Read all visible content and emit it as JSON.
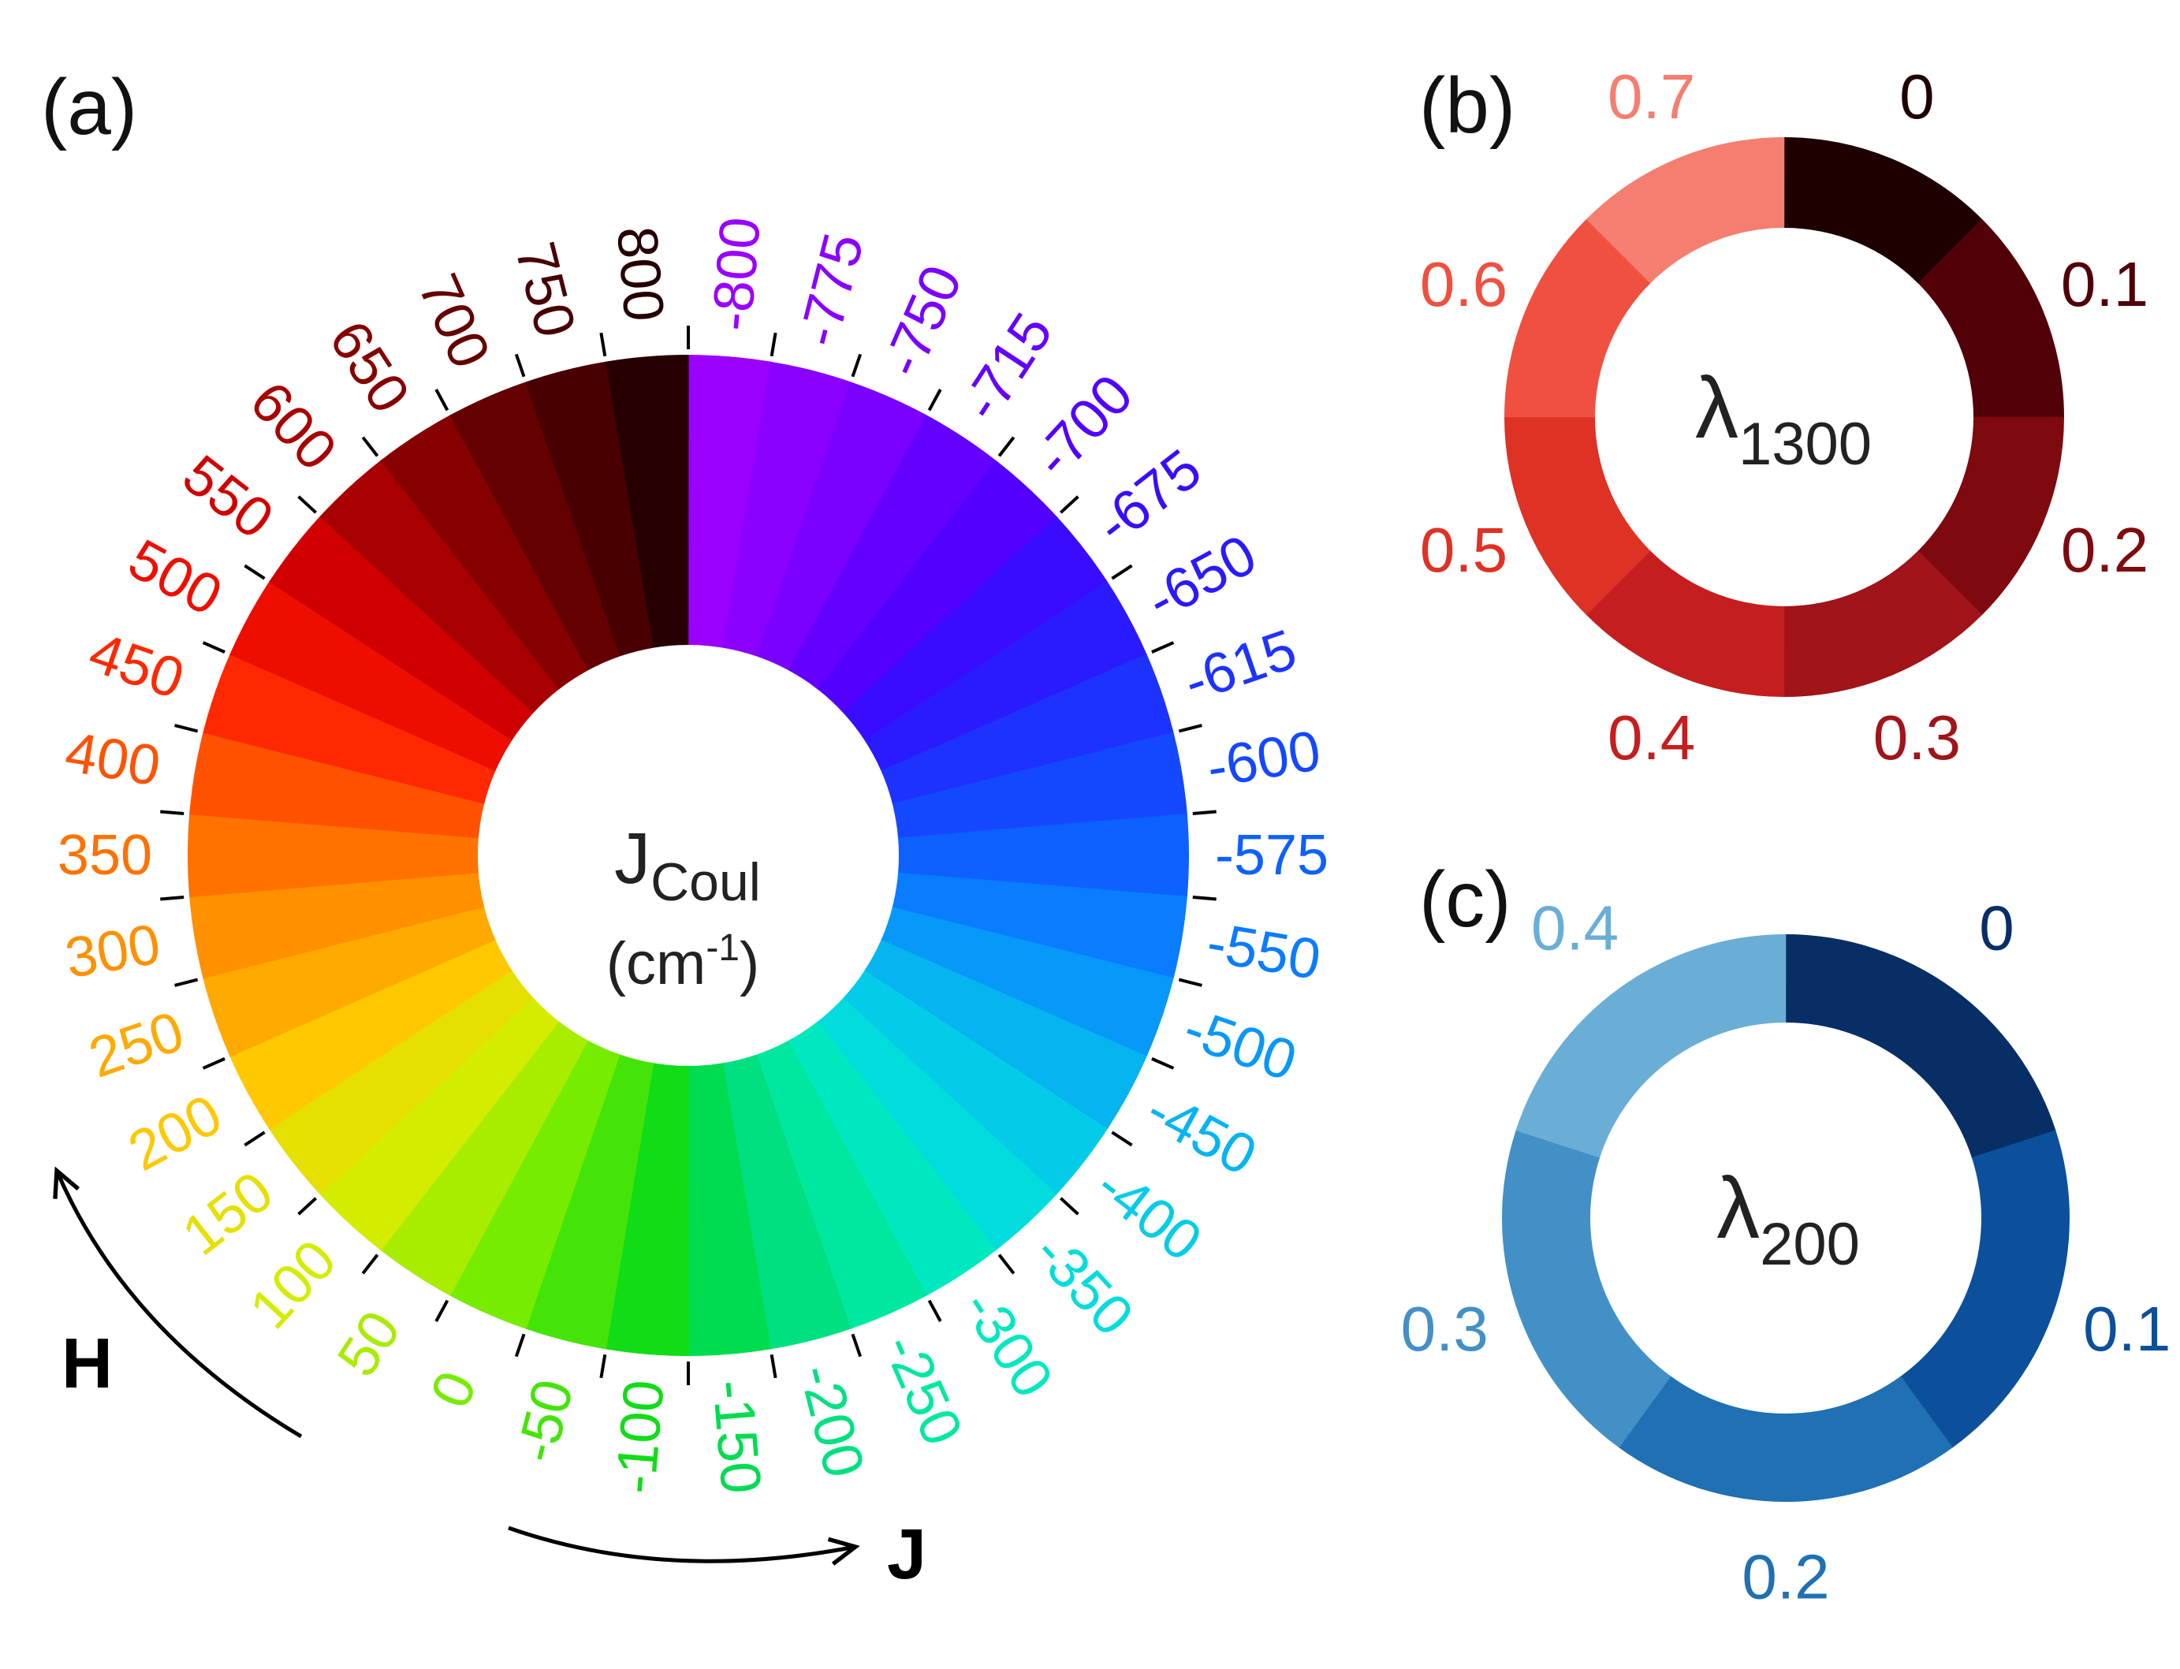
{
  "panel_a": {
    "label": "(a)",
    "center_title": "J",
    "center_title_sub": "Coul",
    "center_unit": "(cm",
    "center_unit_sup": "-1",
    "center_unit_close": ")",
    "arrow_h_label": "H",
    "arrow_j_label": "J",
    "segments": [
      {
        "value": "-800",
        "color": "#9A00FF",
        "label_color": "#9A00FF"
      },
      {
        "value": "-775",
        "color": "#8A00FF",
        "label_color": "#8A00FF"
      },
      {
        "value": "-750",
        "color": "#7A00FF",
        "label_color": "#7A00FF"
      },
      {
        "value": "-715",
        "color": "#6400FF",
        "label_color": "#6400FF"
      },
      {
        "value": "-700",
        "color": "#5200FF",
        "label_color": "#5200FF"
      },
      {
        "value": "-675",
        "color": "#3A0CFF",
        "label_color": "#3A0CFF"
      },
      {
        "value": "-650",
        "color": "#2A1AFF",
        "label_color": "#2A1AFF"
      },
      {
        "value": "-615",
        "color": "#1E32FF",
        "label_color": "#1E32FF"
      },
      {
        "value": "-600",
        "color": "#1448FF",
        "label_color": "#1448FF"
      },
      {
        "value": "-575",
        "color": "#0E60FF",
        "label_color": "#0E60FF"
      },
      {
        "value": "-550",
        "color": "#0A7CFF",
        "label_color": "#0A7CFF"
      },
      {
        "value": "-500",
        "color": "#0898F8",
        "label_color": "#0898F8"
      },
      {
        "value": "-450",
        "color": "#06B4F0",
        "label_color": "#06B4F0"
      },
      {
        "value": "-400",
        "color": "#04CCE8",
        "label_color": "#04CCE8"
      },
      {
        "value": "-350",
        "color": "#02DCDC",
        "label_color": "#02DCDC"
      },
      {
        "value": "-300",
        "color": "#00E8C0",
        "label_color": "#00E8C0"
      },
      {
        "value": "-250",
        "color": "#00E8A0",
        "label_color": "#00E8A0"
      },
      {
        "value": "-200",
        "color": "#00E080",
        "label_color": "#00E080"
      },
      {
        "value": "-150",
        "color": "#00DC50",
        "label_color": "#00DC50"
      },
      {
        "value": "-100",
        "color": "#10DC18",
        "label_color": "#10DC18"
      },
      {
        "value": "-50",
        "color": "#44E408",
        "label_color": "#44E408"
      },
      {
        "value": "0",
        "color": "#76EC00",
        "label_color": "#76EC00"
      },
      {
        "value": "50",
        "color": "#A8EC00",
        "label_color": "#A8EC00"
      },
      {
        "value": "100",
        "color": "#D4EC00",
        "label_color": "#D4EC00"
      },
      {
        "value": "150",
        "color": "#E6E000",
        "label_color": "#E6E000"
      },
      {
        "value": "200",
        "color": "#FFC800",
        "label_color": "#FFC800"
      },
      {
        "value": "250",
        "color": "#FFAA00",
        "label_color": "#FFAA00"
      },
      {
        "value": "300",
        "color": "#FF9000",
        "label_color": "#FF9000"
      },
      {
        "value": "350",
        "color": "#FF7200",
        "label_color": "#FF7200"
      },
      {
        "value": "400",
        "color": "#FF5200",
        "label_color": "#FF5200"
      },
      {
        "value": "450",
        "color": "#FF2800",
        "label_color": "#FF2800"
      },
      {
        "value": "500",
        "color": "#EE0E00",
        "label_color": "#EE0E00"
      },
      {
        "value": "550",
        "color": "#D00000",
        "label_color": "#D00000"
      },
      {
        "value": "600",
        "color": "#A80000",
        "label_color": "#A80000"
      },
      {
        "value": "650",
        "color": "#860000",
        "label_color": "#860000"
      },
      {
        "value": "700",
        "color": "#640000",
        "label_color": "#640000"
      },
      {
        "value": "750",
        "color": "#480000",
        "label_color": "#480000"
      },
      {
        "value": "800",
        "color": "#260000",
        "label_color": "#260000"
      }
    ]
  },
  "panel_b": {
    "label": "(b)",
    "center_symbol": "λ",
    "center_sub": "1300",
    "segments": [
      {
        "value": "0",
        "color": "#1E0000"
      },
      {
        "value": "0.1",
        "color": "#520008"
      },
      {
        "value": "0.2",
        "color": "#7E0A10"
      },
      {
        "value": "0.3",
        "color": "#A0141A"
      },
      {
        "value": "0.4",
        "color": "#C41E1E"
      },
      {
        "value": "0.5",
        "color": "#DE3224"
      },
      {
        "value": "0.6",
        "color": "#F05040"
      },
      {
        "value": "0.7",
        "color": "#F47E70"
      }
    ]
  },
  "panel_c": {
    "label": "(c)",
    "center_symbol": "λ",
    "center_sub": "200",
    "segments": [
      {
        "value": "0",
        "color": "#082E66"
      },
      {
        "value": "0.1",
        "color": "#0C509C"
      },
      {
        "value": "0.2",
        "color": "#2070B4"
      },
      {
        "value": "0.3",
        "color": "#4290C6"
      },
      {
        "value": "0.4",
        "color": "#6AAED6"
      }
    ]
  }
}
